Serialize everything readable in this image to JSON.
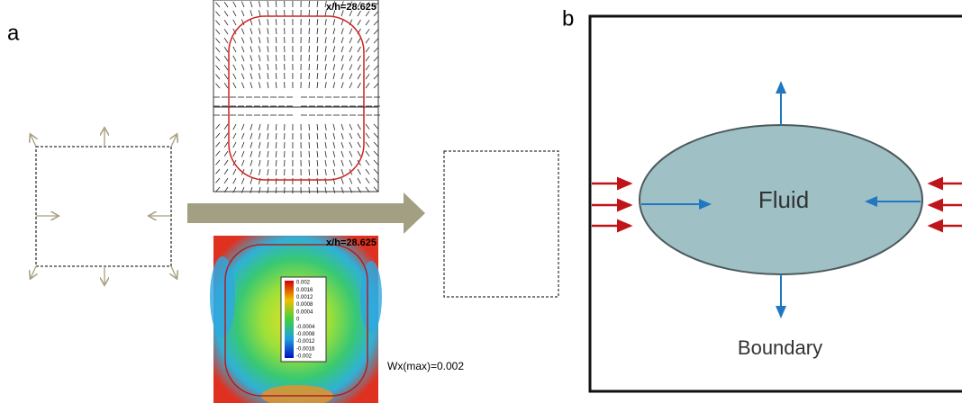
{
  "panel_a": {
    "label": "a",
    "vector_plot": {
      "annotation": "x/h=28.625"
    },
    "contour_plot": {
      "annotation": "x/h=28.625",
      "colorbar": [
        "0.002",
        "0.0016",
        "0.0012",
        "0.0008",
        "0.0004",
        "0",
        "-0.0004",
        "-0.0008",
        "-0.0012",
        "-0.0016",
        "-0.002"
      ]
    },
    "max_label": "Wx(max)=0.002"
  },
  "panel_b": {
    "label": "b",
    "fluid": "Fluid",
    "boundary": "Boundary"
  }
}
